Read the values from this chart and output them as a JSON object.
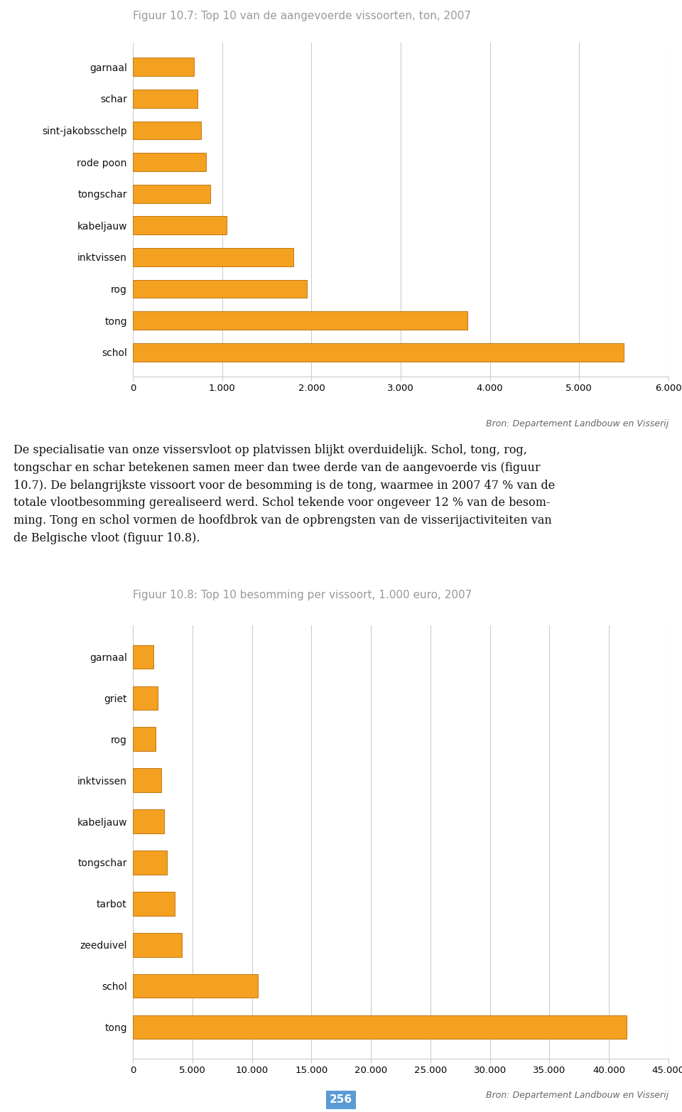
{
  "chart1": {
    "title": "Figuur 10.7: Top 10 van de aangevoerde vissoorten, ton, 2007",
    "categories": [
      "garnaal",
      "schar",
      "sint-jakobsschelp",
      "rode poon",
      "tongschar",
      "kabeljauw",
      "inktvissen",
      "rog",
      "tong",
      "schol"
    ],
    "values": [
      680,
      720,
      760,
      820,
      870,
      1050,
      1800,
      1950,
      3750,
      5500
    ],
    "xlim": [
      0,
      6000
    ],
    "xticks": [
      0,
      1000,
      2000,
      3000,
      4000,
      5000,
      6000
    ],
    "xtick_labels": [
      "0",
      "1.000",
      "2.000",
      "3.000",
      "4.000",
      "5.000",
      "6.000"
    ],
    "source": "Bron: Departement Landbouw en Visserij"
  },
  "body_text_lines": [
    "De specialisatie van onze vissersvloot op platvissen blijkt overduidelijk. Schol, tong, rog,",
    "tongschar en schar betekenen samen meer dan twee derde van de aangevoerde vis (figuur",
    "10.7). De belangrijkste vissoort voor de besomming is de tong, waarmee in 2007 47 % van de",
    "totale vlootbesomming gerealiseerd werd. Schol tekende voor ongeveer 12 % van de besom-",
    "ming. Tong en schol vormen de hoofdbrok van de opbrengsten van de visserijactiviteiten van",
    "de Belgische vloot (figuur 10.8)."
  ],
  "chart2": {
    "title": "Figuur 10.8: Top 10 besomming per vissoort, 1.000 euro, 2007",
    "categories": [
      "garnaal",
      "griet",
      "rog",
      "inktvissen",
      "kabeljauw",
      "tongschar",
      "tarbot",
      "zeeduivel",
      "schol",
      "tong"
    ],
    "values": [
      1700,
      2100,
      1900,
      2400,
      2600,
      2850,
      3500,
      4100,
      10500,
      41500
    ],
    "xlim": [
      0,
      45000
    ],
    "xticks": [
      0,
      5000,
      10000,
      15000,
      20000,
      25000,
      30000,
      35000,
      40000,
      45000
    ],
    "xtick_labels": [
      "0",
      "5.000",
      "10.000",
      "15.000",
      "20.000",
      "25.000",
      "30.000",
      "35.000",
      "40.000",
      "45.000"
    ],
    "source": "Bron: Departement Landbouw en Visserij",
    "page_number": "256"
  },
  "bar_face_color": "#F4A020",
  "bar_edge_color": "#C07818",
  "grid_color": "#CCCCCC",
  "bg_color": "#FFFFFF",
  "text_color": "#111111",
  "title_color": "#999999",
  "source_color": "#666666",
  "label_fontsize": 10,
  "title_fontsize": 11,
  "tick_fontsize": 9.5,
  "body_fontsize": 11.5,
  "source_fontsize": 9
}
